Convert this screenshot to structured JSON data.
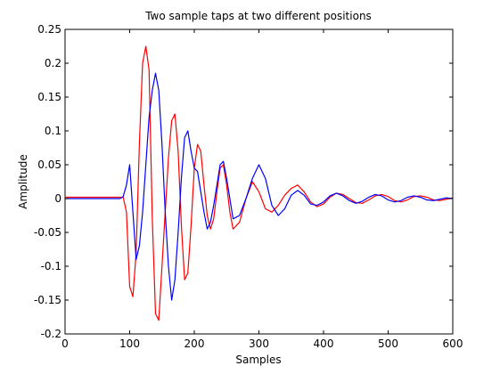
{
  "chart_data": {
    "type": "line",
    "title": "Two sample taps at two different positions",
    "xlabel": "Samples",
    "ylabel": "Amplitude",
    "xlim": [
      0,
      600
    ],
    "ylim": [
      -0.2,
      0.25
    ],
    "x_ticks": [
      0,
      100,
      200,
      300,
      400,
      500,
      600
    ],
    "x_tick_labels": [
      "0",
      "100",
      "200",
      "300",
      "400",
      "500",
      "600"
    ],
    "y_ticks": [
      -0.2,
      -0.15,
      -0.1,
      -0.05,
      0,
      0.05,
      0.1,
      0.15,
      0.2,
      0.25
    ],
    "y_tick_labels": [
      "-0.2",
      "-0.15",
      "-0.1",
      "-0.05",
      "0",
      "0.05",
      "0.1",
      "0.15",
      "0.2",
      "0.25"
    ],
    "grid": false,
    "series": [
      {
        "color": "#ff0000",
        "x": [
          0,
          80,
          90,
          95,
          100,
          105,
          110,
          115,
          120,
          125,
          130,
          135,
          140,
          145,
          150,
          155,
          160,
          165,
          170,
          175,
          180,
          185,
          190,
          195,
          200,
          205,
          210,
          215,
          220,
          225,
          230,
          235,
          240,
          245,
          250,
          255,
          260,
          270,
          280,
          290,
          300,
          310,
          320,
          330,
          340,
          350,
          360,
          370,
          380,
          390,
          400,
          410,
          420,
          430,
          440,
          450,
          460,
          470,
          480,
          490,
          500,
          510,
          520,
          530,
          540,
          550,
          560,
          570,
          580,
          590,
          600
        ],
        "y": [
          0.002,
          0.002,
          0.002,
          -0.02,
          -0.13,
          -0.145,
          -0.08,
          0.08,
          0.2,
          0.225,
          0.19,
          -0.03,
          -0.17,
          -0.18,
          -0.1,
          -0.02,
          0.06,
          0.115,
          0.125,
          0.07,
          -0.04,
          -0.12,
          -0.11,
          -0.04,
          0.045,
          0.08,
          0.07,
          0.02,
          -0.025,
          -0.045,
          -0.03,
          0.01,
          0.045,
          0.05,
          0.02,
          -0.02,
          -0.045,
          -0.035,
          0.0,
          0.025,
          0.01,
          -0.015,
          -0.02,
          -0.01,
          0.005,
          0.015,
          0.02,
          0.01,
          -0.005,
          -0.012,
          -0.008,
          0.002,
          0.008,
          0.006,
          0.0,
          -0.006,
          -0.007,
          -0.002,
          0.004,
          0.006,
          0.003,
          -0.003,
          -0.005,
          -0.002,
          0.003,
          0.004,
          0.002,
          -0.002,
          -0.003,
          -0.001,
          0.001
        ]
      },
      {
        "color": "#0000ff",
        "x": [
          0,
          85,
          90,
          95,
          100,
          105,
          110,
          115,
          120,
          125,
          130,
          135,
          140,
          145,
          150,
          155,
          160,
          165,
          170,
          175,
          180,
          185,
          190,
          195,
          200,
          205,
          210,
          215,
          220,
          225,
          230,
          235,
          240,
          245,
          250,
          255,
          260,
          270,
          280,
          290,
          300,
          310,
          320,
          330,
          340,
          350,
          360,
          370,
          380,
          390,
          400,
          410,
          420,
          430,
          440,
          450,
          460,
          470,
          480,
          490,
          500,
          510,
          520,
          530,
          540,
          550,
          560,
          570,
          580,
          590,
          600
        ],
        "y": [
          0.0,
          0.0,
          0.003,
          0.02,
          0.05,
          -0.02,
          -0.09,
          -0.07,
          -0.02,
          0.05,
          0.12,
          0.16,
          0.185,
          0.16,
          0.08,
          -0.02,
          -0.1,
          -0.15,
          -0.12,
          -0.05,
          0.03,
          0.09,
          0.1,
          0.07,
          0.045,
          0.04,
          0.01,
          -0.02,
          -0.045,
          -0.035,
          -0.01,
          0.02,
          0.05,
          0.055,
          0.03,
          0.0,
          -0.03,
          -0.025,
          0.0,
          0.03,
          0.05,
          0.03,
          -0.01,
          -0.025,
          -0.015,
          0.005,
          0.012,
          0.005,
          -0.008,
          -0.01,
          -0.005,
          0.004,
          0.008,
          0.004,
          -0.003,
          -0.007,
          -0.004,
          0.002,
          0.006,
          0.004,
          -0.002,
          -0.005,
          -0.003,
          0.002,
          0.004,
          0.002,
          -0.002,
          -0.003,
          -0.001,
          0.001,
          0.0
        ]
      }
    ]
  }
}
